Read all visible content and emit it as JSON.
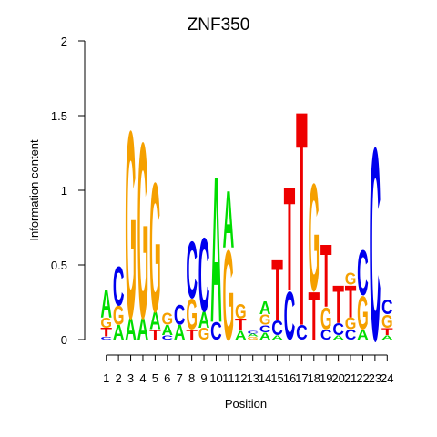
{
  "chart_data": {
    "type": "sequence-logo",
    "title": "ZNF350",
    "xlabel": "Position",
    "ylabel": "Information content",
    "ylim": [
      0,
      2
    ],
    "yticks": [
      "0",
      "0.5",
      "1",
      "1.5",
      "2"
    ],
    "positions": [
      "1",
      "2",
      "3",
      "4",
      "5",
      "6",
      "7",
      "8",
      "9",
      "10",
      "11",
      "12",
      "13",
      "14",
      "15",
      "16",
      "17",
      "18",
      "19",
      "20",
      "21",
      "22",
      "23",
      "24"
    ],
    "colors": {
      "A": "#00dd00",
      "C": "#0000ee",
      "G": "#f5a000",
      "T": "#ee0000"
    },
    "stacks": [
      [
        [
          "C",
          0.02
        ],
        [
          "T",
          0.06
        ],
        [
          "G",
          0.07
        ],
        [
          "A",
          0.19
        ]
      ],
      [
        [
          "A",
          0.1
        ],
        [
          "G",
          0.13
        ],
        [
          "C",
          0.27
        ]
      ],
      [
        [
          "A",
          0.15
        ],
        [
          "G",
          1.29
        ]
      ],
      [
        [
          "A",
          0.15
        ],
        [
          "G",
          1.21
        ]
      ],
      [
        [
          "T",
          0.07
        ],
        [
          "A",
          0.12
        ],
        [
          "G",
          0.89
        ]
      ],
      [
        [
          "C",
          0.03
        ],
        [
          "A",
          0.07
        ],
        [
          "G",
          0.08
        ]
      ],
      [
        [
          "A",
          0.1
        ],
        [
          "C",
          0.14
        ]
      ],
      [
        [
          "T",
          0.07
        ],
        [
          "G",
          0.21
        ],
        [
          "C",
          0.39
        ]
      ],
      [
        [
          "G",
          0.08
        ],
        [
          "A",
          0.11
        ],
        [
          "C",
          0.51
        ]
      ],
      [
        [
          "C",
          0.12
        ],
        [
          "A",
          1.01
        ]
      ],
      [
        [
          "G",
          0.62
        ],
        [
          "A",
          0.39
        ]
      ],
      [
        [
          "A",
          0.06
        ],
        [
          "T",
          0.08
        ],
        [
          "G",
          0.1
        ]
      ],
      [
        [
          "G",
          0.02
        ],
        [
          "A",
          0.02
        ],
        [
          "C",
          0.02
        ]
      ],
      [
        [
          "A",
          0.05
        ],
        [
          "C",
          0.05
        ],
        [
          "G",
          0.07
        ],
        [
          "A",
          0.09
        ]
      ],
      [
        [
          "A",
          0.03
        ],
        [
          "C",
          0.1
        ],
        [
          "T",
          0.42
        ]
      ],
      [
        [
          "C",
          0.33
        ],
        [
          "T",
          0.72
        ]
      ],
      [
        [
          "C",
          0.1
        ],
        [
          "T",
          1.48
        ]
      ],
      [
        [
          "T",
          0.33
        ],
        [
          "G",
          0.74
        ]
      ],
      [
        [
          "C",
          0.07
        ],
        [
          "G",
          0.15
        ],
        [
          "T",
          0.43
        ]
      ],
      [
        [
          "A",
          0.03
        ],
        [
          "C",
          0.08
        ],
        [
          "T",
          0.26
        ]
      ],
      [
        [
          "C",
          0.07
        ],
        [
          "G",
          0.08
        ],
        [
          "T",
          0.22
        ],
        [
          "G",
          0.08
        ]
      ],
      [
        [
          "A",
          0.07
        ],
        [
          "G",
          0.23
        ],
        [
          "C",
          0.31
        ]
      ],
      [
        [
          "C",
          1.33
        ]
      ],
      [
        [
          "A",
          0.03
        ],
        [
          "T",
          0.05
        ],
        [
          "G",
          0.09
        ],
        [
          "C",
          0.1
        ]
      ]
    ]
  }
}
